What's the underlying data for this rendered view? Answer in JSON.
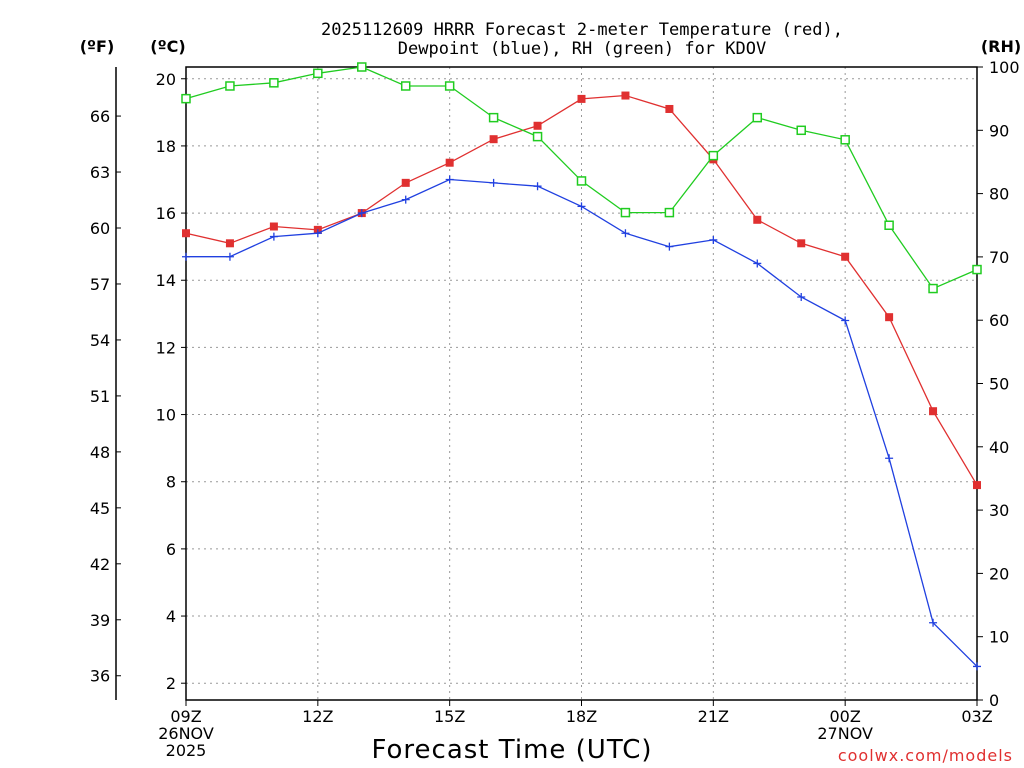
{
  "chart_data": {
    "type": "line",
    "title_line1": "2025112609 HRRR Forecast 2-meter Temperature (red),",
    "title_line2": "Dewpoint (blue), RH (green) for KDOV",
    "xlabel": "Forecast Time (UTC)",
    "units": {
      "fahrenheit": "(ºF)",
      "celsius": "(ºC)",
      "rh": "(RH)"
    },
    "credit": "coolwx.com/models",
    "x_hours": [
      0,
      1,
      2,
      3,
      4,
      5,
      6,
      7,
      8,
      9,
      10,
      11,
      12,
      13,
      14,
      15,
      16,
      17,
      18
    ],
    "x_ticks": [
      {
        "hour": 0,
        "lines": [
          "09Z",
          "26NOV",
          "2025"
        ]
      },
      {
        "hour": 3,
        "lines": [
          "12Z"
        ]
      },
      {
        "hour": 6,
        "lines": [
          "15Z"
        ]
      },
      {
        "hour": 9,
        "lines": [
          "18Z"
        ]
      },
      {
        "hour": 12,
        "lines": [
          "21Z"
        ]
      },
      {
        "hour": 15,
        "lines": [
          "00Z",
          "27NOV"
        ]
      },
      {
        "hour": 18,
        "lines": [
          "03Z"
        ]
      }
    ],
    "ylim_celsius": [
      1.5,
      20.35
    ],
    "celsius_ticks": [
      "2",
      "4",
      "6",
      "8",
      "10",
      "12",
      "14",
      "16",
      "18",
      "20"
    ],
    "fahrenheit_ticks": [
      "36",
      "39",
      "42",
      "45",
      "48",
      "51",
      "54",
      "57",
      "60",
      "63",
      "66"
    ],
    "ylim_rh": [
      0,
      100
    ],
    "rh_ticks": [
      "0",
      "10",
      "20",
      "30",
      "40",
      "50",
      "60",
      "70",
      "80",
      "90",
      "100"
    ],
    "series": [
      {
        "name": "Temperature",
        "unit": "C",
        "color": "#e03030",
        "marker": "filled-square",
        "values": [
          15.4,
          15.1,
          15.6,
          15.5,
          16.0,
          16.9,
          17.5,
          18.2,
          18.6,
          19.4,
          19.5,
          19.1,
          17.6,
          15.8,
          15.1,
          14.7,
          12.9,
          10.1,
          7.9
        ]
      },
      {
        "name": "Dewpoint",
        "unit": "C",
        "color": "#2040e0",
        "marker": "plus",
        "values": [
          14.7,
          14.7,
          15.3,
          15.4,
          16.0,
          16.4,
          17.0,
          16.9,
          16.8,
          16.2,
          15.4,
          15.0,
          15.2,
          14.5,
          13.5,
          12.8,
          8.7,
          3.8,
          2.5
        ]
      },
      {
        "name": "RH",
        "unit": "%",
        "color": "#20cc20",
        "marker": "open-square",
        "values": [
          95,
          97,
          97.5,
          99,
          100,
          97,
          97,
          92,
          89,
          82,
          77,
          77,
          86,
          92,
          90,
          88.5,
          75,
          65,
          68
        ]
      }
    ]
  }
}
